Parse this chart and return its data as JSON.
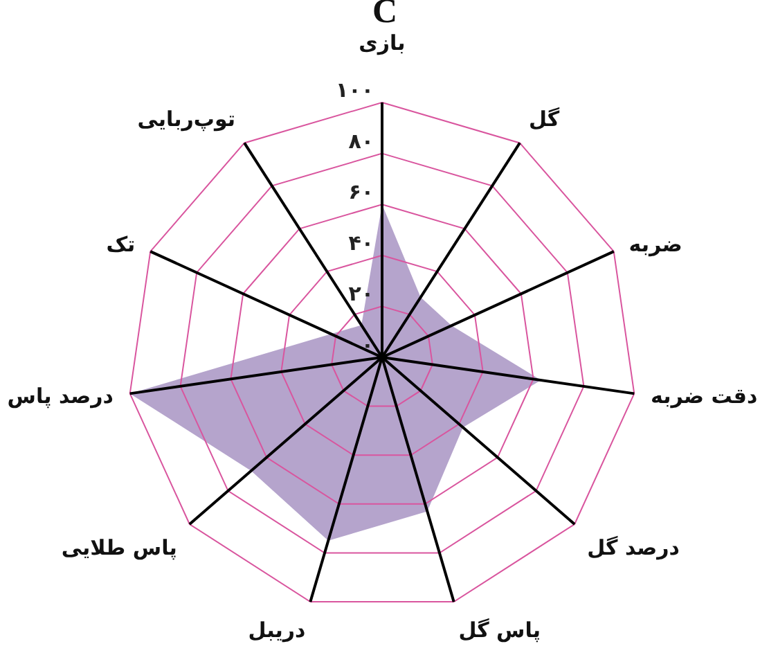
{
  "chart_data": {
    "type": "radar",
    "title": "C",
    "categories": [
      "بازی",
      "گل",
      "ضربه",
      "دقت ضربه",
      "درصد گل",
      "پاس گل",
      "دریبل",
      "پاس طلایی",
      "درصد پاس",
      "تک",
      "توپ‌ربایی"
    ],
    "series": [
      {
        "color": "#b5a4cc",
        "values": [
          60,
          28,
          30,
          63,
          42,
          63,
          75,
          68,
          100,
          22,
          15
        ]
      }
    ],
    "ylim": [
      0,
      100
    ],
    "yticks": [
      {
        "value": 0,
        "label": "۰"
      },
      {
        "value": 20,
        "label": "۲۰"
      },
      {
        "value": 40,
        "label": "۴۰"
      },
      {
        "value": 60,
        "label": "۶۰"
      },
      {
        "value": 80,
        "label": "۸۰"
      },
      {
        "value": 100,
        "label": "۱۰۰"
      }
    ],
    "grid": true
  }
}
